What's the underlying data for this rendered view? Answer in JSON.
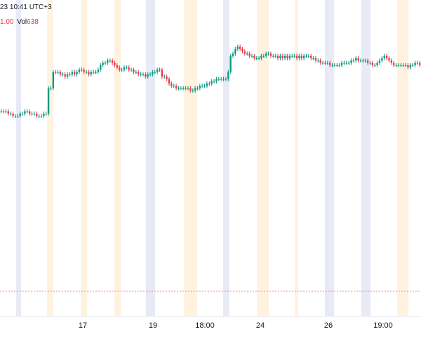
{
  "legend": {
    "datetime": "23 10:41 UTC+3",
    "last_value": "1.00",
    "volume_label": "Vol",
    "volume_value": "638"
  },
  "colors": {
    "up": "#089981",
    "down": "#f23645",
    "session_pre": "#fff3e0",
    "session_post": "#e8eaf6",
    "grid": "#f0f3fa",
    "price_line": "#f23645",
    "axis_text": "#131722"
  },
  "chart_data": {
    "type": "candlestick",
    "x_axis_labels": [
      "17",
      "19",
      "18:00",
      "24",
      "26",
      "19:00"
    ],
    "series": [
      {
        "values": [
          10,
          10,
          10,
          9,
          9,
          8,
          8,
          8,
          9,
          9,
          10,
          10,
          9,
          9,
          9,
          8,
          8,
          8,
          9,
          9,
          20,
          20,
          27,
          27,
          27,
          26,
          26,
          25,
          26,
          26,
          27,
          26,
          27,
          28,
          28,
          27,
          27,
          26,
          27,
          27,
          27,
          28,
          30,
          31,
          31,
          32,
          32,
          31,
          30,
          29,
          28,
          28,
          29,
          29,
          28,
          28,
          27,
          27,
          26,
          26,
          26,
          25,
          26,
          26,
          27,
          27,
          28,
          28,
          25,
          25,
          24,
          22,
          21,
          21,
          20,
          20,
          20,
          20,
          20,
          20,
          19,
          19,
          20,
          20,
          21,
          21,
          21,
          22,
          22,
          23,
          23,
          24,
          24,
          24,
          24,
          24,
          27,
          34,
          35,
          37,
          38,
          37,
          36,
          35,
          35,
          34,
          34,
          33,
          33,
          33,
          34,
          34,
          35,
          35,
          34,
          34,
          34,
          33,
          34,
          33,
          34,
          33,
          34,
          34,
          34,
          33,
          34,
          33,
          34,
          34,
          34,
          33,
          33,
          32,
          32,
          31,
          31,
          31,
          31,
          30,
          30,
          30,
          30,
          30,
          31,
          31,
          31,
          31,
          32,
          32,
          33,
          32,
          32,
          32,
          32,
          31,
          31,
          30,
          30,
          31,
          32,
          33,
          34,
          33,
          32,
          31,
          30,
          30,
          30,
          30,
          30,
          30,
          29,
          30,
          30,
          31,
          31,
          30
        ]
      }
    ]
  }
}
